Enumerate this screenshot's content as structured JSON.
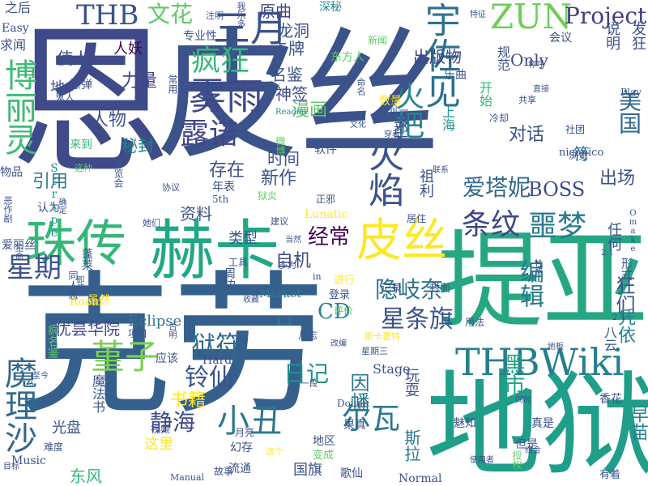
{
  "words": [
    {
      "text": "恩",
      "color": "#3e4a89"
    },
    {
      "text": "皮丝",
      "color": "#3b528b"
    },
    {
      "text": "克劳",
      "color": "#35608d"
    },
    {
      "text": "提亚",
      "color": "#26a784"
    },
    {
      "text": "地狱",
      "color": "#1f9e89"
    },
    {
      "text": "赫卡",
      "color": "#22a785"
    },
    {
      "text": "珠传",
      "color": "#35b779"
    },
    {
      "text": "魔理沙",
      "color": "#31688e"
    },
    {
      "text": "博丽灵",
      "color": "#3dbc74"
    },
    {
      "text": "皮丝",
      "color": "#fde725"
    },
    {
      "text": "THBWiki",
      "color": "#277f8e"
    },
    {
      "text": "ZUN",
      "color": "#6ece58"
    },
    {
      "text": "Project",
      "color": "#433e85"
    },
    {
      "text": "宇佐见",
      "color": "#2c728e"
    },
    {
      "text": "三月",
      "color": "#3b528b"
    },
    {
      "text": "THB",
      "color": "#3b528b"
    },
    {
      "text": "文花",
      "color": "#5ec962"
    },
    {
      "text": "雾雨",
      "color": "#3e4989"
    },
    {
      "text": "疯狂",
      "color": "#35b779"
    },
    {
      "text": "露诺",
      "color": "#404688"
    },
    {
      "text": "火焰",
      "color": "#3b528b"
    },
    {
      "text": "火把",
      "color": "#26828e"
    },
    {
      "text": "爱塔妮",
      "color": "#31688e"
    },
    {
      "text": "BOSS",
      "color": "#3e4989"
    },
    {
      "text": "噩梦",
      "color": "#2a788e"
    },
    {
      "text": "条纹",
      "color": "#3f4788"
    },
    {
      "text": "经常",
      "color": "#440154"
    },
    {
      "text": "星期",
      "color": "#3b528b"
    },
    {
      "text": "狱符",
      "color": "#31688e"
    },
    {
      "text": "堇子",
      "color": "#7ad151"
    },
    {
      "text": "铃仙",
      "color": "#3b528b"
    },
    {
      "text": "小丑",
      "color": "#2a788e"
    },
    {
      "text": "尔瓦",
      "color": "#2a788e"
    },
    {
      "text": "静海",
      "color": "#3e4989"
    },
    {
      "text": "星条旗",
      "color": "#3b528b"
    },
    {
      "text": "隐岐奈",
      "color": "#2c728e"
    },
    {
      "text": "编辑",
      "color": "#2a788e"
    },
    {
      "text": "狂们",
      "color": "#3b528b"
    },
    {
      "text": "CD",
      "color": "#26828e"
    },
    {
      "text": "日记",
      "color": "#21918c"
    },
    {
      "text": "黑市",
      "color": "#20a386"
    },
    {
      "text": "因幡",
      "color": "#2a788e"
    },
    {
      "text": "书籍",
      "color": "#fde725"
    },
    {
      "text": "优昙华院",
      "color": "#3f4889"
    },
    {
      "text": "出版物",
      "color": "#3e4989"
    },
    {
      "text": "卡牌",
      "color": "#3b528b"
    },
    {
      "text": "龙洞",
      "color": "#3b528b"
    },
    {
      "text": "原曲",
      "color": "#3e4989"
    },
    {
      "text": "神签",
      "color": "#3e4989"
    },
    {
      "text": "名鉴",
      "color": "#3b528b"
    },
    {
      "text": "漫画",
      "color": "#5ec962"
    },
    {
      "text": "新作",
      "color": "#3b528b"
    },
    {
      "text": "时间",
      "color": "#3b528b"
    },
    {
      "text": "存在",
      "color": "#3b528b"
    },
    {
      "text": "力量",
      "color": "#3f4788"
    },
    {
      "text": "秘封",
      "color": "#26828e"
    },
    {
      "text": "人物",
      "color": "#3b528b"
    },
    {
      "text": "使人",
      "color": "#3b528b"
    },
    {
      "text": "人妖",
      "color": "#440154"
    },
    {
      "text": "引用",
      "color": "#2a788e"
    },
    {
      "text": "资料",
      "color": "#3b528b"
    },
    {
      "text": "类型",
      "color": "#3b528b"
    },
    {
      "text": "自机",
      "color": "#3e4989"
    },
    {
      "text": "出场",
      "color": "#3b528b"
    },
    {
      "text": "凭依",
      "color": "#26828e"
    },
    {
      "text": "美国",
      "color": "#31688e"
    },
    {
      "text": "对话",
      "color": "#3b528b"
    },
    {
      "text": "符",
      "color": "#2a788e"
    },
    {
      "text": "Only",
      "color": "#3e4989"
    },
    {
      "text": "Eclipse",
      "color": "#2a788e"
    },
    {
      "text": "Lunatic",
      "color": "#fde725"
    },
    {
      "text": "Market",
      "color": "#2a788e"
    },
    {
      "text": "Stage",
      "color": "#3b528b"
    },
    {
      "text": "Hard",
      "color": "#3b528b"
    },
    {
      "text": "Normal",
      "color": "#3b528b"
    },
    {
      "text": "Music",
      "color": "#3b528b"
    },
    {
      "text": "Easy",
      "color": "#3b528b"
    },
    {
      "text": "Room",
      "color": "#fde725"
    },
    {
      "text": "东风",
      "color": "#35b779"
    },
    {
      "text": "光盘",
      "color": "#3b528b"
    },
    {
      "text": "国旗",
      "color": "#3b528b"
    },
    {
      "text": "歌仙",
      "color": "#3b528b"
    },
    {
      "text": "流通",
      "color": "#3b528b"
    },
    {
      "text": "幻存",
      "color": "#3b528b"
    },
    {
      "text": "这里",
      "color": "#fde725"
    },
    {
      "text": "早苗",
      "color": "#26828e"
    },
    {
      "text": "斯拉",
      "color": "#2a788e"
    },
    {
      "text": "玩耍",
      "color": "#3b528b"
    },
    {
      "text": "果真",
      "color": "#3b528b"
    },
    {
      "text": "地区",
      "color": "#3b528b"
    },
    {
      "text": "Doujin",
      "color": "#3b528b"
    },
    {
      "text": "魅知",
      "color": "#3b528b"
    },
    {
      "text": "真是",
      "color": "#3b528b"
    },
    {
      "text": "但是",
      "color": "#3b528b"
    },
    {
      "text": "香花",
      "color": "#3b528b"
    },
    {
      "text": "1.1",
      "color": "#26828e"
    },
    {
      "text": "niconico",
      "color": "#3b528b"
    },
    {
      "text": "上海",
      "color": "#21918c"
    },
    {
      "text": "软件",
      "color": "#3b528b"
    },
    {
      "text": "部下",
      "color": "#3b528b"
    },
    {
      "text": "祖利",
      "color": "#3b528b"
    },
    {
      "text": "乐曲",
      "color": "#3b528b"
    },
    {
      "text": "开始",
      "color": "#35b779"
    },
    {
      "text": "说明",
      "color": "#3b528b"
    },
    {
      "text": "发狂",
      "color": "#3b528b"
    },
    {
      "text": "规范",
      "color": "#3b528b"
    },
    {
      "text": "会议",
      "color": "#3b528b"
    },
    {
      "text": "东方人",
      "color": "#5ec962"
    },
    {
      "text": "新闻",
      "color": "#5ec962"
    },
    {
      "text": "深秘",
      "color": "#26828e"
    },
    {
      "text": "之后",
      "color": "#3b528b"
    },
    {
      "text": "专业性",
      "color": "#3b528b"
    },
    {
      "text": "求闻",
      "color": "#3b528b"
    },
    {
      "text": "地",
      "color": "#3b528b"
    },
    {
      "text": "擦弹",
      "color": "#3b528b"
    },
    {
      "text": "鬼人",
      "color": "#3b528b"
    },
    {
      "text": "常用",
      "color": "#3b528b"
    },
    {
      "text": "物品",
      "color": "#3b528b"
    },
    {
      "text": "来到",
      "color": "#35b779"
    },
    {
      "text": "Stripe",
      "color": "#21918c"
    },
    {
      "text": "年表",
      "color": "#3b528b"
    },
    {
      "text": "5th",
      "color": "#3b528b"
    },
    {
      "text": "狱炎",
      "color": "#5ec962"
    },
    {
      "text": "正邪",
      "color": "#3b528b"
    },
    {
      "text": "居住",
      "color": "#3b528b"
    },
    {
      "text": "联系",
      "color": "#3b528b"
    },
    {
      "text": "社团",
      "color": "#3b528b"
    },
    {
      "text": "浏览",
      "color": "#3b528b"
    },
    {
      "text": "Play",
      "color": "#3b528b"
    },
    {
      "text": "Omake",
      "color": "#3b528b"
    },
    {
      "text": "任何",
      "color": "#3b528b"
    },
    {
      "text": "形式",
      "color": "#3b528b"
    },
    {
      "text": "2.1",
      "color": "#3b528b"
    },
    {
      "text": "2.4",
      "color": "#3b528b"
    },
    {
      "text": "八云",
      "color": "#3b528b"
    },
    {
      "text": "蓬莱",
      "color": "#3b528b"
    },
    {
      "text": "同人志",
      "color": "#3b528b"
    },
    {
      "text": "虽然",
      "color": "#fde725"
    },
    {
      "text": "周边",
      "color": "#3b528b"
    },
    {
      "text": "工具",
      "color": "#3b528b"
    },
    {
      "text": "进行",
      "color": "#fde725"
    },
    {
      "text": "登录",
      "color": "#3b528b"
    },
    {
      "text": "评价",
      "color": "#5ec962"
    },
    {
      "text": "记录",
      "color": "#3b528b"
    },
    {
      "text": "封面",
      "color": "#3b528b"
    },
    {
      "text": "用法",
      "color": "#3b528b"
    },
    {
      "text": "从志",
      "color": "#3b528b"
    },
    {
      "text": "项目",
      "color": "#3b528b"
    },
    {
      "text": "应该",
      "color": "#3b528b"
    },
    {
      "text": "难度",
      "color": "#3b528b"
    },
    {
      "text": "视频",
      "color": "#3b528b"
    },
    {
      "text": "月亮",
      "color": "#3b528b"
    },
    {
      "text": "变成",
      "color": "#5ec962"
    },
    {
      "text": "故事",
      "color": "#3b528b"
    },
    {
      "text": "Manual",
      "color": "#3b528b"
    },
    {
      "text": "这个",
      "color": "#fde725"
    },
    {
      "text": "使用者",
      "color": "#3b528b"
    },
    {
      "text": "有着",
      "color": "#3b528b"
    },
    {
      "text": "授权",
      "color": "#5ec962"
    },
    {
      "text": "建议",
      "color": "#3b528b"
    },
    {
      "text": "认为",
      "color": "#3b528b"
    },
    {
      "text": "她们",
      "color": "#3b528b"
    },
    {
      "text": "协议",
      "color": "#3b528b"
    },
    {
      "text": "爱丽丝",
      "color": "#3b528b"
    },
    {
      "text": "生命",
      "color": "#3b528b"
    },
    {
      "text": "博览会",
      "color": "#3b528b"
    },
    {
      "text": "魔法书",
      "color": "#3b528b"
    },
    {
      "text": "斯卡蕾特",
      "color": "#fde725"
    },
    {
      "text": "星期三",
      "color": "#3b528b"
    },
    {
      "text": "疯名鉴",
      "color": "#5ec962"
    },
    {
      "text": "注明",
      "color": "#3b528b"
    },
    {
      "text": "我乐多",
      "color": "#3b528b"
    },
    {
      "text": "特征",
      "color": "#3b528b"
    },
    {
      "text": "称呼",
      "color": "#3b528b"
    },
    {
      "text": "直接",
      "color": "#3b528b"
    },
    {
      "text": "共享",
      "color": "#3b528b"
    },
    {
      "text": "冷却",
      "color": "#3b528b"
    },
    {
      "text": "数量",
      "color": "#fde725"
    },
    {
      "text": "命名",
      "color": "#3b528b"
    },
    {
      "text": "一天则",
      "color": "#3b528b"
    },
    {
      "text": "穿着",
      "color": "#3b528b"
    },
    {
      "text": "Readme",
      "color": "#21918c"
    },
    {
      "text": "微博",
      "color": "#5ec962"
    },
    {
      "text": "当然",
      "color": "#3b528b"
    },
    {
      "text": "多为",
      "color": "#3b528b"
    },
    {
      "text": "in",
      "color": "#3b528b"
    },
    {
      "text": "性格",
      "color": "#3b528b"
    },
    {
      "text": "地板",
      "color": "#3b528b"
    },
    {
      "text": "同时",
      "color": "#3b528b"
    },
    {
      "text": "组合",
      "color": "#3b528b"
    },
    {
      "text": "一段",
      "color": "#3b528b"
    },
    {
      "text": "古明",
      "color": "#3b528b"
    },
    {
      "text": "即使",
      "color": "#3b528b"
    },
    {
      "text": "这种",
      "color": "#5ec962"
    },
    {
      "text": "确定",
      "color": "#3b528b"
    },
    {
      "text": "恶作剧",
      "color": "#3b528b"
    },
    {
      "text": "至今",
      "color": "#3b528b"
    },
    {
      "text": "目标",
      "color": "#3b528b"
    },
    {
      "text": "收藏",
      "color": "#3b528b"
    },
    {
      "text": "改编",
      "color": "#3b528b"
    },
    {
      "text": "一起",
      "color": "#3b528b"
    },
    {
      "text": "文化",
      "color": "#3b528b"
    }
  ]
}
